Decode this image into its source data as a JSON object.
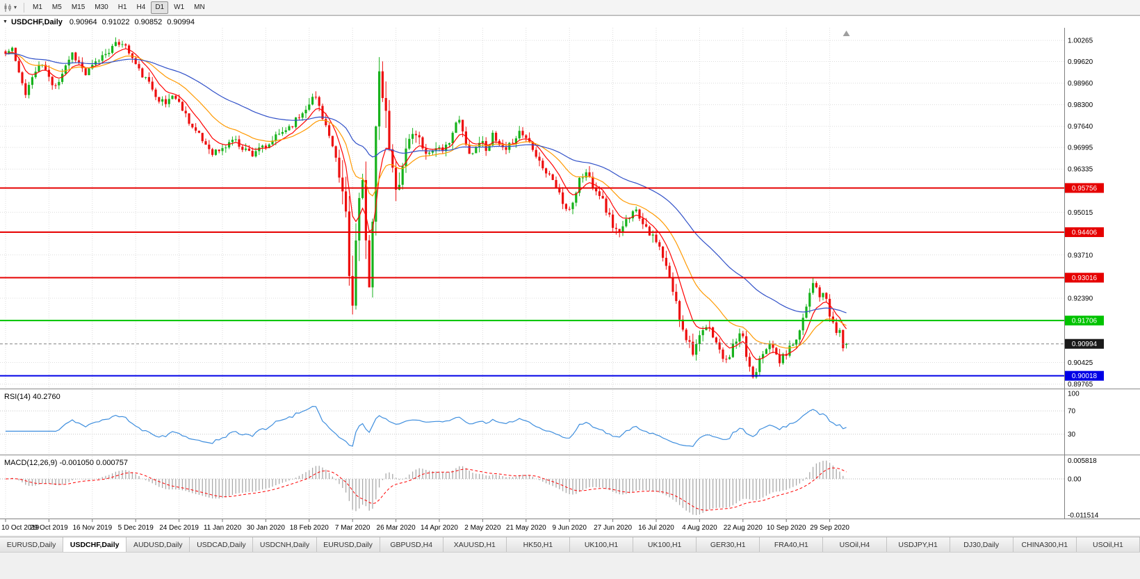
{
  "toolbar": {
    "caret": "▾",
    "chart_type_icon": "candlestick-chart",
    "timeframes": [
      {
        "label": "M1",
        "active": false
      },
      {
        "label": "M5",
        "active": false
      },
      {
        "label": "M15",
        "active": false
      },
      {
        "label": "M30",
        "active": false
      },
      {
        "label": "H1",
        "active": false
      },
      {
        "label": "H4",
        "active": false
      },
      {
        "label": "D1",
        "active": true
      },
      {
        "label": "W1",
        "active": false
      },
      {
        "label": "MN",
        "active": false
      }
    ]
  },
  "chart_header": {
    "collapse_icon": "▼",
    "symbol_period": "USDCHF,Daily",
    "open": "0.90964",
    "high": "0.91022",
    "low": "0.90852",
    "close": "0.90994"
  },
  "chart_data": [
    {
      "type": "candlestick",
      "symbol": "USDCHF",
      "timeframe": "Daily",
      "last_ohlc": {
        "open": 0.90964,
        "high": 0.91022,
        "low": 0.90852,
        "close": 0.90994
      },
      "candle_count": 253,
      "candles_per_xtick": 13,
      "seed": 11,
      "x_tick_labels": [
        "10 Oct 2019",
        "29 Oct 2019",
        "16 Nov 2019",
        "5 Dec 2019",
        "24 Dec 2019",
        "11 Jan 2020",
        "30 Jan 2020",
        "18 Feb 2020",
        "7 Mar 2020",
        "26 Mar 2020",
        "14 Apr 2020",
        "2 May 2020",
        "21 May 2020",
        "9 Jun 2020",
        "27 Jun 2020",
        "16 Jul 2020",
        "4 Aug 2020",
        "22 Aug 2020",
        "10 Sep 2020",
        "29 Sep 2020"
      ],
      "y_axis": {
        "range": [
          0.8965,
          1.0065
        ],
        "tick_labels": [
          "1.00265",
          "0.99620",
          "0.98960",
          "0.98300",
          "0.97640",
          "0.96995",
          "0.96335",
          "0.95015",
          "0.93710",
          "0.92390",
          "0.90425",
          "0.89765"
        ]
      },
      "grid_color": "#DCDCDC",
      "candle_colors": {
        "up": "#17B21C",
        "down": "#ED0E0E"
      },
      "moving_averages": [
        {
          "period": 8,
          "color": "#FF0000",
          "name": "fast-ma"
        },
        {
          "period": 21,
          "color": "#FF9900",
          "name": "medium-ma"
        },
        {
          "period": 55,
          "color": "#3050C8",
          "name": "slow-ma"
        }
      ],
      "hlines": [
        {
          "price": 0.95756,
          "label": "0.95756",
          "color": "#E60000",
          "kind": "resistance"
        },
        {
          "price": 0.94406,
          "label": "0.94406",
          "color": "#E60000",
          "kind": "resistance"
        },
        {
          "price": 0.93016,
          "label": "0.93016",
          "color": "#E60000",
          "kind": "resistance"
        },
        {
          "price": 0.91706,
          "label": "0.91706",
          "color": "#00C300",
          "kind": "support"
        },
        {
          "price": 0.90018,
          "label": "0.90018",
          "color": "#0000E6",
          "kind": "support"
        }
      ],
      "price_line": {
        "value": 0.90994,
        "label": "0.90994",
        "badge_color": "#1A1A1A"
      },
      "close_keyframes": [
        [
          0,
          0.9985
        ],
        [
          2,
          1.0002
        ],
        [
          4,
          0.9922
        ],
        [
          6,
          0.9868
        ],
        [
          8,
          0.9912
        ],
        [
          10,
          0.9952
        ],
        [
          12,
          0.9938
        ],
        [
          14,
          0.9886
        ],
        [
          16,
          0.9906
        ],
        [
          18,
          0.9952
        ],
        [
          20,
          0.9988
        ],
        [
          22,
          0.9958
        ],
        [
          24,
          0.9922
        ],
        [
          26,
          0.9946
        ],
        [
          28,
          0.9968
        ],
        [
          30,
          0.999
        ],
        [
          33,
          1.0012
        ],
        [
          35,
          1.0022
        ],
        [
          37,
          0.999
        ],
        [
          40,
          0.9934
        ],
        [
          43,
          0.9894
        ],
        [
          46,
          0.9848
        ],
        [
          48,
          0.9832
        ],
        [
          50,
          0.9862
        ],
        [
          53,
          0.982
        ],
        [
          56,
          0.9762
        ],
        [
          59,
          0.972
        ],
        [
          62,
          0.9686
        ],
        [
          65,
          0.9692
        ],
        [
          68,
          0.9726
        ],
        [
          71,
          0.97
        ],
        [
          74,
          0.968
        ],
        [
          76,
          0.9702
        ],
        [
          78,
          0.969
        ],
        [
          80,
          0.9722
        ],
        [
          83,
          0.9748
        ],
        [
          86,
          0.9772
        ],
        [
          89,
          0.9806
        ],
        [
          91,
          0.9842
        ],
        [
          93,
          0.9852
        ],
        [
          95,
          0.98
        ],
        [
          97,
          0.973
        ],
        [
          99,
          0.9645
        ],
        [
          101,
          0.9558
        ],
        [
          102,
          0.9498
        ],
        [
          103,
          0.9308
        ],
        [
          104,
          0.9252
        ],
        [
          105,
          0.9402
        ],
        [
          106,
          0.9532
        ],
        [
          107,
          0.9558
        ],
        [
          108,
          0.9398
        ],
        [
          109,
          0.9302
        ],
        [
          110,
          0.9502
        ],
        [
          111,
          0.9752
        ],
        [
          112,
          0.9895
        ],
        [
          113,
          0.9862
        ],
        [
          114,
          0.9782
        ],
        [
          115,
          0.9702
        ],
        [
          116,
          0.9622
        ],
        [
          117,
          0.9562
        ],
        [
          119,
          0.9652
        ],
        [
          121,
          0.9726
        ],
        [
          123,
          0.9746
        ],
        [
          125,
          0.9702
        ],
        [
          127,
          0.9682
        ],
        [
          129,
          0.9706
        ],
        [
          131,
          0.9676
        ],
        [
          133,
          0.9726
        ],
        [
          135,
          0.9766
        ],
        [
          136,
          0.9782
        ],
        [
          138,
          0.9704
        ],
        [
          140,
          0.9682
        ],
        [
          142,
          0.9722
        ],
        [
          144,
          0.97
        ],
        [
          146,
          0.9732
        ],
        [
          148,
          0.9702
        ],
        [
          150,
          0.9682
        ],
        [
          152,
          0.9722
        ],
        [
          154,
          0.9748
        ],
        [
          156,
          0.973
        ],
        [
          158,
          0.9702
        ],
        [
          160,
          0.966
        ],
        [
          162,
          0.9622
        ],
        [
          164,
          0.9602
        ],
        [
          166,
          0.956
        ],
        [
          168,
          0.95
        ],
        [
          170,
          0.9532
        ],
        [
          172,
          0.9602
        ],
        [
          174,
          0.9622
        ],
        [
          176,
          0.959
        ],
        [
          178,
          0.956
        ],
        [
          180,
          0.951
        ],
        [
          182,
          0.9462
        ],
        [
          184,
          0.9432
        ],
        [
          186,
          0.9472
        ],
        [
          188,
          0.9516
        ],
        [
          190,
          0.949
        ],
        [
          192,
          0.9462
        ],
        [
          194,
          0.9422
        ],
        [
          196,
          0.939
        ],
        [
          198,
          0.933
        ],
        [
          200,
          0.9262
        ],
        [
          202,
          0.9182
        ],
        [
          204,
          0.9122
        ],
        [
          206,
          0.9082
        ],
        [
          208,
          0.9112
        ],
        [
          210,
          0.915
        ],
        [
          212,
          0.913
        ],
        [
          214,
          0.9076
        ],
        [
          216,
          0.9042
        ],
        [
          218,
          0.9092
        ],
        [
          220,
          0.9122
        ],
        [
          221,
          0.9112
        ],
        [
          222,
          0.9062
        ],
        [
          224,
          0.8999
        ],
        [
          225,
          0.9022
        ],
        [
          226,
          0.9062
        ],
        [
          228,
          0.9092
        ],
        [
          230,
          0.9086
        ],
        [
          232,
          0.9046
        ],
        [
          234,
          0.9072
        ],
        [
          236,
          0.9102
        ],
        [
          238,
          0.9142
        ],
        [
          240,
          0.9222
        ],
        [
          242,
          0.9295
        ],
        [
          243,
          0.9262
        ],
        [
          244,
          0.924
        ],
        [
          245,
          0.9256
        ],
        [
          246,
          0.9226
        ],
        [
          247,
          0.9186
        ],
        [
          248,
          0.9164
        ],
        [
          249,
          0.9132
        ],
        [
          250,
          0.9146
        ],
        [
          251,
          0.9086
        ],
        [
          252,
          0.9099
        ]
      ],
      "volatility_keyframes": [
        [
          0,
          0.0028
        ],
        [
          88,
          0.003
        ],
        [
          98,
          0.0058
        ],
        [
          103,
          0.0128
        ],
        [
          112,
          0.0112
        ],
        [
          118,
          0.0072
        ],
        [
          124,
          0.0042
        ],
        [
          158,
          0.0032
        ],
        [
          196,
          0.0042
        ],
        [
          206,
          0.0046
        ],
        [
          214,
          0.0032
        ],
        [
          236,
          0.003
        ],
        [
          242,
          0.0038
        ],
        [
          252,
          0.0022
        ]
      ]
    },
    {
      "type": "line",
      "indicator": "RSI",
      "label": "RSI(14) 40.2760",
      "period": 14,
      "current_value": 40.276,
      "line_color": "#3E8EDE",
      "y_range": [
        -4,
        106
      ],
      "level_lines": [
        70,
        30
      ],
      "tick_labels": [
        "100",
        "70",
        "30"
      ]
    },
    {
      "type": "histogram",
      "indicator": "MACD",
      "label": "MACD(12,26,9) -0.001050 0.000757",
      "current_values": {
        "macd": -0.00105,
        "signal": 0.000757
      },
      "histogram_color": "#A9A9A9",
      "signal_color": "#FF0000",
      "y_range": [
        -0.0126,
        0.0073
      ],
      "scale_max": 0.005818,
      "scale_min": -0.011514,
      "tick_labels": [
        "0.005818",
        "0.00",
        "-0.011514"
      ]
    }
  ],
  "tabs": {
    "items": [
      {
        "label": "EURUSD,Daily",
        "active": false
      },
      {
        "label": "USDCHF,Daily",
        "active": true
      },
      {
        "label": "AUDUSD,Daily",
        "active": false
      },
      {
        "label": "USDCAD,Daily",
        "active": false
      },
      {
        "label": "USDCNH,Daily",
        "active": false
      },
      {
        "label": "EURUSD,Daily",
        "active": false
      },
      {
        "label": "GBPUSD,H4",
        "active": false
      },
      {
        "label": "XAUUSD,H1",
        "active": false
      },
      {
        "label": "HK50,H1",
        "active": false
      },
      {
        "label": "UK100,H1",
        "active": false
      },
      {
        "label": "UK100,H1",
        "active": false
      },
      {
        "label": "GER30,H1",
        "active": false
      },
      {
        "label": "FRA40,H1",
        "active": false
      },
      {
        "label": "USOil,H4",
        "active": false
      },
      {
        "label": "USDJPY,H1",
        "active": false
      },
      {
        "label": "DJ30,Daily",
        "active": false
      },
      {
        "label": "CHINA300,H1",
        "active": false
      },
      {
        "label": "USOil,H1",
        "active": false
      }
    ]
  }
}
